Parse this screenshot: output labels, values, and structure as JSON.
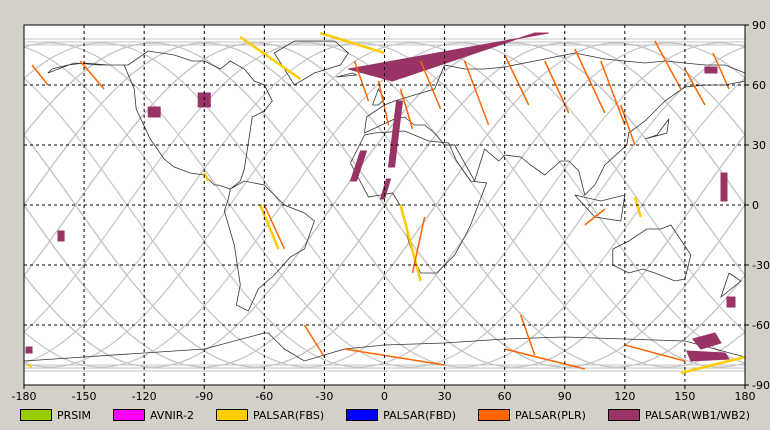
{
  "chart_data": {
    "type": "map",
    "projection": "plate-carree",
    "xlim": [
      -180,
      180
    ],
    "ylim": [
      -90,
      90
    ],
    "grid": true,
    "legend_position": "bottom",
    "x_ticks": [
      "-180",
      "-150",
      "-120",
      "-90",
      "-60",
      "-30",
      "0",
      "30",
      "60",
      "90",
      "120",
      "150",
      "180"
    ],
    "y_ticks": [
      "90",
      "60",
      "30",
      "0",
      "-30",
      "-60",
      "-90"
    ],
    "legend": [
      {
        "label": "PRSIM",
        "color": "#99cc00"
      },
      {
        "label": "AVNIR-2",
        "color": "#ff00ff"
      },
      {
        "label": "PALSAR(FBS)",
        "color": "#ffcc00"
      },
      {
        "label": "PALSAR(FBD)",
        "color": "#0000ff"
      },
      {
        "label": "PALSAR(PLR)",
        "color": "#ff6600"
      },
      {
        "label": "PALSAR(WB1/WB2)",
        "color": "#993366"
      }
    ],
    "wb_scenes": [
      {
        "lon": [
          -18,
          4,
          75,
          82
        ],
        "lat": [
          68,
          62,
          86,
          86
        ],
        "kind": "arc"
      },
      {
        "lon": [
          -12,
          -9,
          -14,
          -17
        ],
        "lat": [
          27,
          27,
          12,
          12
        ]
      },
      {
        "lon": [
          6,
          9,
          5,
          2
        ],
        "lat": [
          52,
          52,
          19,
          19
        ]
      },
      {
        "lon": [
          1,
          3,
          0,
          -2
        ],
        "lat": [
          13,
          13,
          3,
          3
        ]
      },
      {
        "lon": [
          -93,
          -87,
          -87,
          -93
        ],
        "lat": [
          56,
          56,
          49,
          49
        ]
      },
      {
        "lon": [
          -118,
          -112,
          -112,
          -118
        ],
        "lat": [
          49,
          49,
          44,
          44
        ]
      },
      {
        "lon": [
          -163,
          -160,
          -160,
          -163
        ],
        "lat": [
          -13,
          -13,
          -18,
          -18
        ]
      },
      {
        "lon": [
          160,
          166,
          166,
          160
        ],
        "lat": [
          69,
          69,
          66,
          66
        ]
      },
      {
        "lon": [
          168,
          171,
          171,
          168
        ],
        "lat": [
          16,
          16,
          2,
          2
        ]
      },
      {
        "lon": [
          171,
          175,
          175,
          171
        ],
        "lat": [
          -46,
          -46,
          -51,
          -51
        ]
      },
      {
        "lon": [
          154,
          165,
          168,
          158
        ],
        "lat": [
          -67,
          -64,
          -69,
          -72
        ]
      },
      {
        "lon": [
          151,
          170,
          172,
          153
        ],
        "lat": [
          -73,
          -74,
          -77,
          -78
        ]
      },
      {
        "lon": [
          -179,
          -176,
          -176,
          -179
        ],
        "lat": [
          -71,
          -71,
          -74,
          -74
        ]
      }
    ],
    "fbs_tracks": [
      {
        "lon": [
          -72,
          -42
        ],
        "lat": [
          84,
          63
        ]
      },
      {
        "lon": [
          -32,
          0
        ],
        "lat": [
          86,
          76
        ]
      },
      {
        "lon": [
          8,
          18
        ],
        "lat": [
          0,
          -38
        ]
      },
      {
        "lon": [
          -62,
          -53
        ],
        "lat": [
          0,
          -22
        ]
      },
      {
        "lon": [
          -90,
          -88
        ],
        "lat": [
          16,
          12
        ]
      },
      {
        "lon": [
          -178,
          -176
        ],
        "lat": [
          -80,
          -81
        ]
      },
      {
        "lon": [
          148,
          180
        ],
        "lat": [
          -84,
          -76
        ]
      },
      {
        "lon": [
          125,
          128
        ],
        "lat": [
          4,
          -6
        ]
      }
    ],
    "plr_tracks": [
      {
        "lon": [
          -176,
          -168
        ],
        "lat": [
          70,
          60
        ]
      },
      {
        "lon": [
          -152,
          -140
        ],
        "lat": [
          72,
          58
        ]
      },
      {
        "lon": [
          -60,
          -50
        ],
        "lat": [
          0,
          -22
        ]
      },
      {
        "lon": [
          -15,
          -8
        ],
        "lat": [
          72,
          52
        ]
      },
      {
        "lon": [
          -3,
          2
        ],
        "lat": [
          62,
          40
        ]
      },
      {
        "lon": [
          8,
          14
        ],
        "lat": [
          58,
          38
        ]
      },
      {
        "lon": [
          18,
          28
        ],
        "lat": [
          72,
          48
        ]
      },
      {
        "lon": [
          40,
          52
        ],
        "lat": [
          72,
          40
        ]
      },
      {
        "lon": [
          60,
          72
        ],
        "lat": [
          75,
          50
        ]
      },
      {
        "lon": [
          80,
          92
        ],
        "lat": [
          72,
          46
        ]
      },
      {
        "lon": [
          95,
          110
        ],
        "lat": [
          78,
          46
        ]
      },
      {
        "lon": [
          108,
          120
        ],
        "lat": [
          72,
          40
        ]
      },
      {
        "lon": [
          118,
          125
        ],
        "lat": [
          50,
          30
        ]
      },
      {
        "lon": [
          135,
          148
        ],
        "lat": [
          82,
          58
        ]
      },
      {
        "lon": [
          150,
          160
        ],
        "lat": [
          68,
          50
        ]
      },
      {
        "lon": [
          164,
          172
        ],
        "lat": [
          76,
          58
        ]
      },
      {
        "lon": [
          20,
          14
        ],
        "lat": [
          -6,
          -34
        ]
      },
      {
        "lon": [
          68,
          75
        ],
        "lat": [
          -55,
          -75
        ]
      },
      {
        "lon": [
          -40,
          -30
        ],
        "lat": [
          -60,
          -76
        ]
      },
      {
        "lon": [
          -20,
          30
        ],
        "lat": [
          -72,
          -80
        ]
      },
      {
        "lon": [
          60,
          100
        ],
        "lat": [
          -72,
          -82
        ]
      },
      {
        "lon": [
          120,
          150
        ],
        "lat": [
          -70,
          -78
        ]
      },
      {
        "lon": [
          100,
          110
        ],
        "lat": [
          -10,
          -2
        ]
      }
    ],
    "coastlines": [
      {
        "lon": [
          -168,
          -155,
          -142,
          -130,
          -125,
          -124,
          -117,
          -110,
          -105,
          -97,
          -90,
          -85,
          -83,
          -77,
          -72,
          -70,
          -66,
          -60,
          -56,
          -60,
          -65,
          -70,
          -77,
          -82,
          -90,
          -96,
          -105,
          -118,
          -128,
          -138,
          -150,
          -158,
          -166,
          -168
        ],
        "lat": [
          66,
          71,
          70,
          70,
          58,
          48,
          33,
          23,
          19,
          16,
          15,
          10,
          10,
          8,
          12,
          18,
          44,
          47,
          52,
          60,
          62,
          68,
          72,
          68,
          72,
          72,
          75,
          77,
          70,
          70,
          71,
          70,
          68,
          66
        ]
      },
      {
        "lon": [
          -77,
          -70,
          -60,
          -50,
          -40,
          -35,
          -40,
          -47,
          -55,
          -63,
          -68,
          -74,
          -72,
          -75,
          -80,
          -78,
          -77
        ],
        "lat": [
          8,
          12,
          10,
          0,
          -4,
          -8,
          -22,
          -26,
          -35,
          -42,
          -53,
          -50,
          -40,
          -20,
          -3,
          3,
          8
        ]
      },
      {
        "lon": [
          -55,
          -45,
          -25,
          -18,
          -22,
          -35,
          -45,
          -55
        ],
        "lat": [
          76,
          82,
          82,
          76,
          70,
          66,
          60,
          76
        ]
      },
      {
        "lon": [
          -17,
          -10,
          -5,
          10,
          22,
          32,
          36,
          43,
          51,
          43,
          40,
          35,
          26,
          18,
          15,
          12,
          9,
          4,
          -8,
          -17
        ],
        "lat": [
          21,
          35,
          36,
          37,
          32,
          31,
          22,
          12,
          11,
          -10,
          -16,
          -25,
          -34,
          -34,
          -27,
          -18,
          -2,
          6,
          4,
          21
        ]
      },
      {
        "lon": [
          -10,
          -9,
          0,
          5,
          15,
          25,
          30,
          40,
          50,
          60,
          75,
          95,
          110,
          130,
          140,
          160,
          170,
          180,
          180,
          170,
          160,
          150,
          140,
          130,
          122,
          121,
          110,
          105,
          100,
          97,
          92,
          88,
          80,
          73,
          68,
          60,
          57,
          50,
          45,
          35,
          30,
          25,
          20,
          15,
          10,
          5,
          -10
        ],
        "lat": [
          36,
          44,
          50,
          52,
          55,
          58,
          70,
          68,
          68,
          69,
          72,
          76,
          73,
          71,
          72,
          70,
          70,
          66,
          62,
          60,
          60,
          59,
          52,
          42,
          36,
          30,
          20,
          10,
          5,
          17,
          22,
          22,
          15,
          20,
          24,
          25,
          22,
          28,
          12,
          30,
          30,
          36,
          40,
          40,
          44,
          43,
          36
        ]
      },
      {
        "lon": [
          114,
          122,
          131,
          138,
          143,
          153,
          150,
          145,
          135,
          129,
          122,
          114,
          114
        ],
        "lat": [
          -22,
          -18,
          -12,
          -12,
          -10,
          -25,
          -37,
          -38,
          -34,
          -32,
          -34,
          -30,
          -22
        ]
      },
      {
        "lon": [
          -180,
          -150,
          -120,
          -90,
          -60,
          -58,
          -50,
          -40,
          -20,
          0,
          30,
          60,
          90,
          120,
          150,
          180
        ],
        "lat": [
          -78,
          -76,
          -74,
          -72,
          -64,
          -64,
          -72,
          -78,
          -72,
          -70,
          -69,
          -67,
          -66,
          -67,
          -68,
          -76
        ]
      },
      {
        "lon": [
          130,
          141,
          142,
          136,
          130
        ],
        "lat": [
          33,
          36,
          43,
          35,
          33
        ]
      },
      {
        "lon": [
          -6,
          -3,
          0,
          -3,
          -6
        ],
        "lat": [
          50,
          58,
          53,
          50,
          50
        ]
      },
      {
        "lon": [
          172,
          178,
          168,
          172
        ],
        "lat": [
          -34,
          -38,
          -46,
          -34
        ]
      },
      {
        "lon": [
          95,
          105,
          118,
          120,
          108,
          95
        ],
        "lat": [
          5,
          -6,
          -8,
          5,
          2,
          5
        ]
      },
      {
        "lon": [
          -24,
          -14,
          -16,
          -24
        ],
        "lat": [
          64,
          65,
          66,
          64
        ]
      }
    ]
  }
}
